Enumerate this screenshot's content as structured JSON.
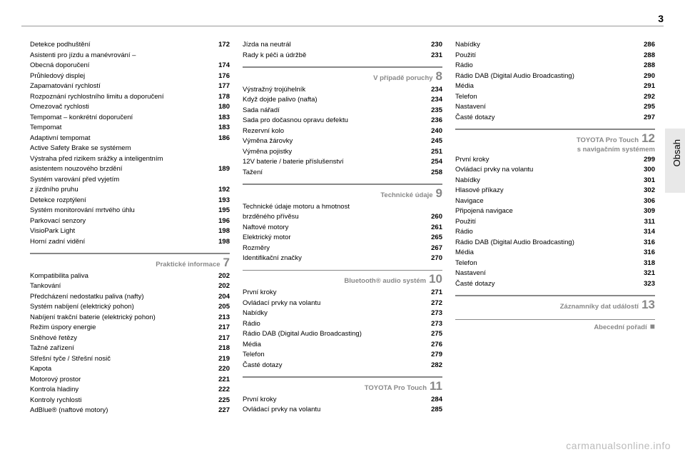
{
  "page_number": "3",
  "side_label": "Obsah",
  "watermark": "carmanualsonline.info",
  "columns": [
    {
      "blocks": [
        {
          "type": "items",
          "items": [
            {
              "label": "Detekce podhuštění",
              "page": "172"
            },
            {
              "label": "Asistenti pro jízdu a manévrování –",
              "page": ""
            },
            {
              "label": "Obecná doporučení",
              "page": "174"
            },
            {
              "label": "Průhledový displej",
              "page": "176"
            },
            {
              "label": "Zapamatování rychlostí",
              "page": "177"
            },
            {
              "label": "Rozpoznání rychlostního limitu a doporučení",
              "page": "178"
            },
            {
              "label": "Omezovač rychlosti",
              "page": "180"
            },
            {
              "label": "Tempomat – konkrétní doporučení",
              "page": "183"
            },
            {
              "label": "Tempomat",
              "page": "183"
            },
            {
              "label": "Adaptivní tempomat",
              "page": "186"
            },
            {
              "label": "Active Safety Brake se systémem",
              "page": ""
            },
            {
              "label": "Výstraha před rizikem srážky a inteligentním",
              "page": ""
            },
            {
              "label": "asistentem nouzového brzdění",
              "page": "189"
            },
            {
              "label": "Systém varování před vyjetím",
              "page": ""
            },
            {
              "label": "z jízdního pruhu",
              "page": "192"
            },
            {
              "label": "Detekce rozptýlení",
              "page": "193"
            },
            {
              "label": "Systém monitorování mrtvého úhlu",
              "page": "195"
            },
            {
              "label": "Parkovací senzory",
              "page": "196"
            },
            {
              "label": "VisioPark Light",
              "page": "198"
            },
            {
              "label": "Horní zadní vidění",
              "page": "198"
            }
          ]
        },
        {
          "type": "section",
          "title": "Praktické informace",
          "num": "7"
        },
        {
          "type": "items",
          "items": [
            {
              "label": "Kompatibilita paliva",
              "page": "202"
            },
            {
              "label": "Tankování",
              "page": "202"
            },
            {
              "label": "Předcházení nedostatku paliva (nafty)",
              "page": "204"
            },
            {
              "label": "Systém nabíjení (elektrický pohon)",
              "page": "205"
            },
            {
              "label": "Nabíjení trakční baterie (elektrický pohon)",
              "page": "213"
            },
            {
              "label": "Režim úspory energie",
              "page": "217"
            },
            {
              "label": "Sněhové řetězy",
              "page": "217"
            },
            {
              "label": "Tažné zařízení",
              "page": "218"
            },
            {
              "label": "Střešní tyče / Střešní nosič",
              "page": "219"
            },
            {
              "label": "Kapota",
              "page": "220"
            },
            {
              "label": "Motorový prostor",
              "page": "221"
            },
            {
              "label": "Kontrola hladiny",
              "page": "222"
            },
            {
              "label": "Kontroly rychlosti",
              "page": "225"
            },
            {
              "label": "AdBlue® (naftové motory)",
              "page": "227"
            }
          ]
        }
      ]
    },
    {
      "blocks": [
        {
          "type": "items",
          "items": [
            {
              "label": "Jízda na neutrál",
              "page": "230"
            },
            {
              "label": "Rady k péči a údržbě",
              "page": "231"
            }
          ]
        },
        {
          "type": "section",
          "title": "V případě poruchy",
          "num": "8"
        },
        {
          "type": "items",
          "items": [
            {
              "label": "Výstražný trojúhelník",
              "page": "234"
            },
            {
              "label": "Když dojde palivo (nafta)",
              "page": "234"
            },
            {
              "label": "Sada nářadí",
              "page": "235"
            },
            {
              "label": "Sada pro dočasnou opravu defektu",
              "page": "236"
            },
            {
              "label": "Rezervní kolo",
              "page": "240"
            },
            {
              "label": "Výměna žárovky",
              "page": "245"
            },
            {
              "label": "Výměna pojistky",
              "page": "251"
            },
            {
              "label": "12V baterie / baterie příslušenství",
              "page": "254"
            },
            {
              "label": "Tažení",
              "page": "258"
            }
          ]
        },
        {
          "type": "section",
          "title": "Technické údaje",
          "num": "9"
        },
        {
          "type": "items",
          "items": [
            {
              "label": "Technické údaje motoru a hmotnost",
              "page": ""
            },
            {
              "label": "brzděného přívěsu",
              "page": "260"
            },
            {
              "label": "Naftové motory",
              "page": "261"
            },
            {
              "label": "Elektrický motor",
              "page": "265"
            },
            {
              "label": "Rozměry",
              "page": "267"
            },
            {
              "label": "Identifikační značky",
              "page": "270"
            }
          ]
        },
        {
          "type": "section",
          "title": "Bluetooth® audio systém",
          "num": "10"
        },
        {
          "type": "items",
          "items": [
            {
              "label": "První kroky",
              "page": "271"
            },
            {
              "label": "Ovládací prvky na volantu",
              "page": "272"
            },
            {
              "label": "Nabídky",
              "page": "273"
            },
            {
              "label": "Rádio",
              "page": "273"
            },
            {
              "label": "Rádio DAB (Digital Audio Broadcasting)",
              "page": "275"
            },
            {
              "label": "Média",
              "page": "276"
            },
            {
              "label": "Telefon",
              "page": "279"
            },
            {
              "label": "Časté dotazy",
              "page": "282"
            }
          ]
        },
        {
          "type": "section",
          "title": "TOYOTA Pro Touch",
          "num": "11"
        },
        {
          "type": "items",
          "items": [
            {
              "label": "První kroky",
              "page": "284"
            },
            {
              "label": "Ovládací prvky na volantu",
              "page": "285"
            }
          ]
        }
      ]
    },
    {
      "blocks": [
        {
          "type": "items",
          "items": [
            {
              "label": "Nabídky",
              "page": "286"
            },
            {
              "label": "Použití",
              "page": "288"
            },
            {
              "label": "Rádio",
              "page": "288"
            },
            {
              "label": "Rádio DAB (Digital Audio Broadcasting)",
              "page": "290"
            },
            {
              "label": "Média",
              "page": "291"
            },
            {
              "label": "Telefon",
              "page": "292"
            },
            {
              "label": "Nastavení",
              "page": "295"
            },
            {
              "label": "Časté dotazy",
              "page": "297"
            }
          ]
        },
        {
          "type": "section",
          "title": "TOYOTA Pro Touch",
          "subtitle": "s navigačním systémem",
          "num": "12"
        },
        {
          "type": "items",
          "items": [
            {
              "label": "První kroky",
              "page": "299"
            },
            {
              "label": "Ovládací prvky na volantu",
              "page": "300"
            },
            {
              "label": "Nabídky",
              "page": "301"
            },
            {
              "label": "Hlasové příkazy",
              "page": "302"
            },
            {
              "label": "Navigace",
              "page": "306"
            },
            {
              "label": "Připojená navigace",
              "page": "309"
            },
            {
              "label": "Použití",
              "page": "311"
            },
            {
              "label": "Rádio",
              "page": "314"
            },
            {
              "label": "Rádio DAB (Digital Audio Broadcasting)",
              "page": "316"
            },
            {
              "label": "Média",
              "page": "316"
            },
            {
              "label": "Telefon",
              "page": "318"
            },
            {
              "label": "Nastavení",
              "page": "321"
            },
            {
              "label": "Časté dotazy",
              "page": "323"
            }
          ]
        },
        {
          "type": "section",
          "title": "Záznamníky dat událostí",
          "num": "13"
        },
        {
          "type": "section",
          "title": "Abecední pořadí",
          "bullet": "■"
        }
      ]
    }
  ]
}
